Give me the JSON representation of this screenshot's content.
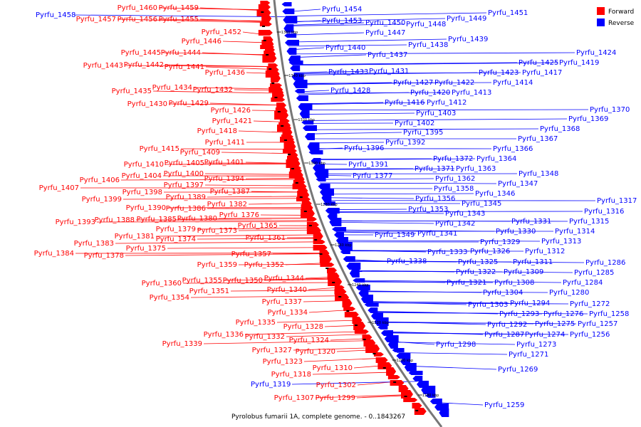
{
  "caption": "Pyrolobus fumarii 1A, complete genome. - 0..1843267",
  "legend": [
    {
      "label": "Forward",
      "color": "#ff0000"
    },
    {
      "label": "Reverse",
      "color": "#0000ff"
    }
  ],
  "colors": {
    "forward": "#ff0000",
    "reverse": "#0000ff",
    "backbone": "#777777"
  },
  "ticks": [
    "1360 kbp",
    "1340 kbp",
    "1320 kbp",
    "1300 kbp",
    "1280 kbp",
    "1260 kbp",
    "1240 kbp",
    "1220 kbp",
    "1200 kbp",
    "1180 kbp"
  ],
  "forward_labels": [
    "Pyrfu_1460",
    "Pyrfu_1459",
    "Pyrfu_1457",
    "Pyrfu_1456",
    "Pyrfu_1455",
    "Pyrfu_1452",
    "Pyrfu_1446",
    "Pyrfu_1445",
    "Pyrfu_1444",
    "Pyrfu_1443",
    "Pyrfu_1442",
    "Pyrfu_1441",
    "Pyrfu_1436",
    "Pyrfu_1434",
    "Pyrfu_1435",
    "Pyrfu_1432",
    "Pyrfu_1430",
    "Pyrfu_1429",
    "Pyrfu_1426",
    "Pyrfu_1421",
    "Pyrfu_1418",
    "Pyrfu_1411",
    "Pyrfu_1415",
    "Pyrfu_1409",
    "Pyrfu_1410",
    "Pyrfu_1405",
    "Pyrfu_1401",
    "Pyrfu_1406",
    "Pyrfu_1404",
    "Pyrfu_1400",
    "Pyrfu_1394",
    "Pyrfu_1407",
    "Pyrfu_1397",
    "Pyrfu_1399",
    "Pyrfu_1398",
    "Pyrfu_1387",
    "Pyrfu_1389",
    "Pyrfu_1390",
    "Pyrfu_1386",
    "Pyrfu_1382",
    "Pyrfu_1393",
    "Pyrfu_1388",
    "Pyrfu_1385",
    "Pyrfu_1380",
    "Pyrfu_1376",
    "Pyrfu_1379",
    "Pyrfu_1373",
    "Pyrfu_1365",
    "Pyrfu_1381",
    "Pyrfu_1374",
    "Pyrfu_1361",
    "Pyrfu_1383",
    "Pyrfu_1375",
    "Pyrfu_1384",
    "Pyrfu_1378",
    "Pyrfu_1357",
    "Pyrfu_1359",
    "Pyrfu_1352",
    "Pyrfu_1344",
    "Pyrfu_1360",
    "Pyrfu_1355",
    "Pyrfu_1350",
    "Pyrfu_1351",
    "Pyrfu_1340",
    "Pyrfu_1354",
    "Pyrfu_1337",
    "Pyrfu_1334",
    "Pyrfu_1335",
    "Pyrfu_1328",
    "Pyrfu_1336",
    "Pyrfu_1332",
    "Pyrfu_1324",
    "Pyrfu_1339",
    "Pyrfu_1327",
    "Pyrfu_1320",
    "Pyrfu_1323",
    "Pyrfu_1310",
    "Pyrfu_1318",
    "Pyrfu_1302",
    "Pyrfu_1307",
    "Pyrfu_1299"
  ],
  "reverse_labels": [
    "Pyrfu_1458",
    "Pyrfu_1454",
    "Pyrfu_1451",
    "Pyrfu_1453",
    "Pyrfu_1450",
    "Pyrfu_1449",
    "Pyrfu_1448",
    "Pyrfu_1447",
    "Pyrfu_1439",
    "Pyrfu_1438",
    "Pyrfu_1440",
    "Pyrfu_1437",
    "Pyrfu_1424",
    "Pyrfu_1425",
    "Pyrfu_1419",
    "Pyrfu_1433",
    "Pyrfu_1431",
    "Pyrfu_1423",
    "Pyrfu_1417",
    "Pyrfu_1427",
    "Pyrfu_1422",
    "Pyrfu_1414",
    "Pyrfu_1428",
    "Pyrfu_1420",
    "Pyrfu_1413",
    "Pyrfu_1416",
    "Pyrfu_1412",
    "Pyrfu_1370",
    "Pyrfu_1403",
    "Pyrfu_1369",
    "Pyrfu_1402",
    "Pyrfu_1368",
    "Pyrfu_1395",
    "Pyrfu_1367",
    "Pyrfu_1392",
    "Pyrfu_1396",
    "Pyrfu_1366",
    "Pyrfu_1372",
    "Pyrfu_1364",
    "Pyrfu_1391",
    "Pyrfu_1371",
    "Pyrfu_1363",
    "Pyrfu_1377",
    "Pyrfu_1348",
    "Pyrfu_1362",
    "Pyrfu_1347",
    "Pyrfu_1358",
    "Pyrfu_1346",
    "Pyrfu_1356",
    "Pyrfu_1345",
    "Pyrfu_1353",
    "Pyrfu_1343",
    "Pyrfu_1317",
    "Pyrfu_1316",
    "Pyrfu_1342",
    "Pyrfu_1315",
    "Pyrfu_1349",
    "Pyrfu_1341",
    "Pyrfu_1331",
    "Pyrfu_1314",
    "Pyrfu_1330",
    "Pyrfu_1313",
    "Pyrfu_1329",
    "Pyrfu_1333",
    "Pyrfu_1326",
    "Pyrfu_1312",
    "Pyrfu_1338",
    "Pyrfu_1325",
    "Pyrfu_1311",
    "Pyrfu_1286",
    "Pyrfu_1322",
    "Pyrfu_1309",
    "Pyrfu_1285",
    "Pyrfu_1321",
    "Pyrfu_1308",
    "Pyrfu_1284",
    "Pyrfu_1304",
    "Pyrfu_1280",
    "Pyrfu_1303",
    "Pyrfu_1294",
    "Pyrfu_1272",
    "Pyrfu_1293",
    "Pyrfu_1276",
    "Pyrfu_1258",
    "Pyrfu_1292",
    "Pyrfu_1275",
    "Pyrfu_1257",
    "Pyrfu_1287",
    "Pyrfu_1274",
    "Pyrfu_1256",
    "Pyrfu_1298",
    "Pyrfu_1273",
    "Pyrfu_1271",
    "Pyrfu_1269",
    "Pyrfu_1319",
    "Pyrfu_1259"
  ]
}
